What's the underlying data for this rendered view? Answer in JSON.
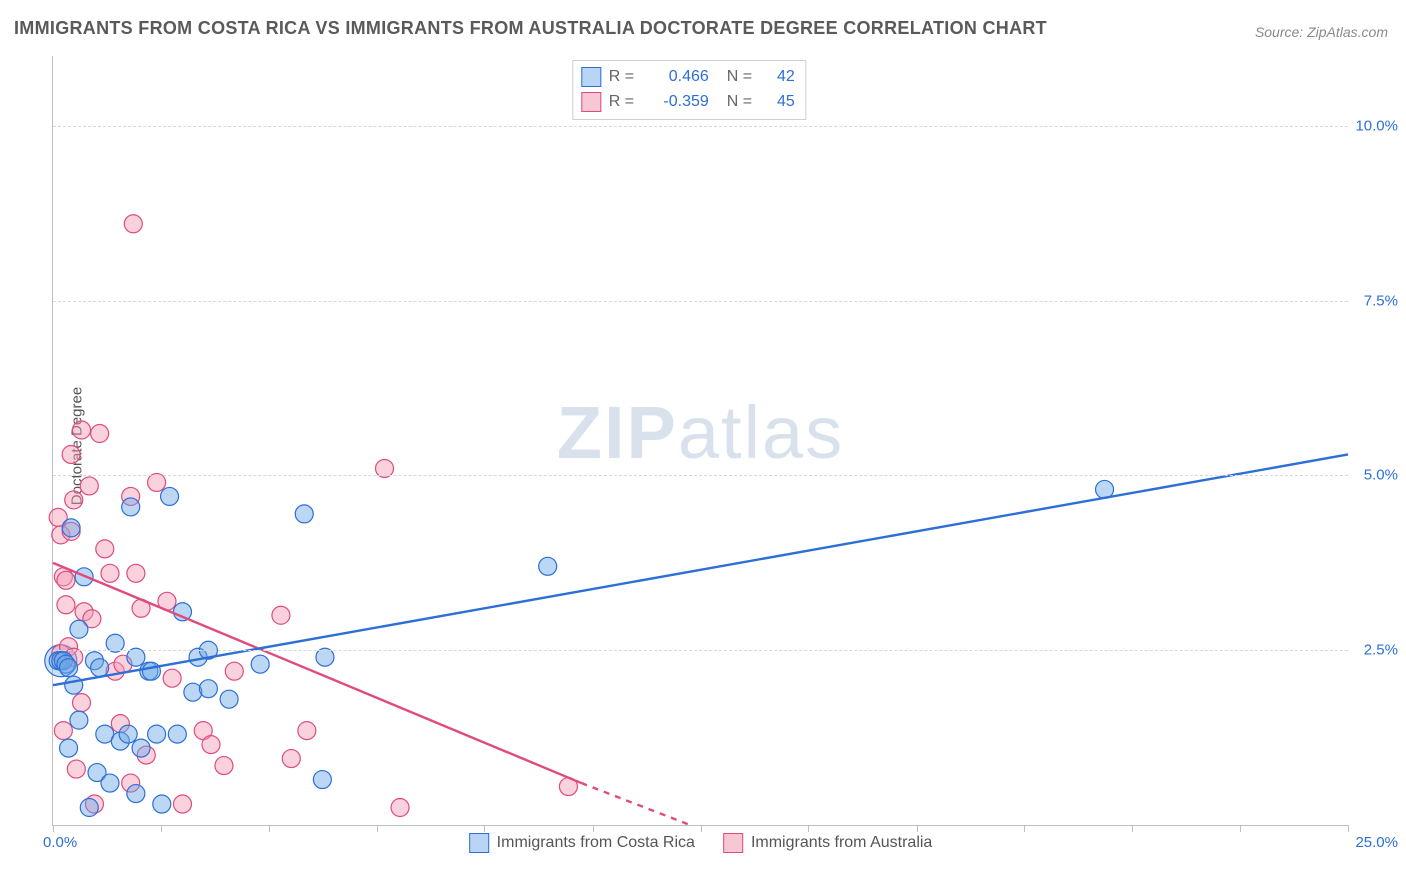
{
  "title": "IMMIGRANTS FROM COSTA RICA VS IMMIGRANTS FROM AUSTRALIA DOCTORATE DEGREE CORRELATION CHART",
  "source_label": "Source: ZipAtlas.com",
  "watermark": {
    "bold": "ZIP",
    "light": "atlas"
  },
  "y_axis_title": "Doctorate Degree",
  "chart": {
    "type": "scatter",
    "xlim": [
      0,
      25
    ],
    "ylim": [
      0,
      11
    ],
    "x_tick_positions": [
      0,
      2.08,
      4.17,
      6.25,
      8.33,
      10.42,
      12.5,
      14.58,
      16.67,
      18.75,
      20.83,
      22.92,
      25
    ],
    "x_tick_labels": {
      "start": "0.0%",
      "end": "25.0%"
    },
    "y_gridlines": [
      2.5,
      5.0,
      7.5,
      10.0
    ],
    "y_tick_labels": [
      "2.5%",
      "5.0%",
      "7.5%",
      "10.0%"
    ],
    "background_color": "#ffffff",
    "grid_color": "#d8d8d8",
    "axis_color": "#bfbfbf",
    "marker_radius": 9,
    "marker_opacity": 0.45,
    "marker_stroke_width": 1.2,
    "line_width": 2.4,
    "series": {
      "blue": {
        "label": "Immigrants from Costa Rica",
        "fill": "#6aa6e6",
        "stroke": "#2d6fd6",
        "R": "0.466",
        "N": "42",
        "regression": {
          "x1": 0,
          "y1": 2.0,
          "x2": 25,
          "y2": 5.3,
          "dash": "none"
        },
        "points": [
          [
            0.1,
            2.35
          ],
          [
            0.15,
            2.35
          ],
          [
            0.2,
            2.35
          ],
          [
            0.25,
            2.3
          ],
          [
            0.3,
            2.25
          ],
          [
            0.3,
            1.1
          ],
          [
            0.35,
            4.25
          ],
          [
            0.4,
            2.0
          ],
          [
            0.5,
            1.5
          ],
          [
            0.5,
            2.8
          ],
          [
            0.6,
            3.55
          ],
          [
            0.7,
            0.25
          ],
          [
            0.8,
            2.35
          ],
          [
            0.85,
            0.75
          ],
          [
            0.9,
            2.25
          ],
          [
            1.0,
            1.3
          ],
          [
            1.1,
            0.6
          ],
          [
            1.2,
            2.6
          ],
          [
            1.3,
            1.2
          ],
          [
            1.45,
            1.3
          ],
          [
            1.5,
            4.55
          ],
          [
            1.6,
            0.45
          ],
          [
            1.6,
            2.4
          ],
          [
            1.7,
            1.1
          ],
          [
            1.85,
            2.2
          ],
          [
            1.9,
            2.2
          ],
          [
            2.0,
            1.3
          ],
          [
            2.1,
            0.3
          ],
          [
            2.25,
            4.7
          ],
          [
            2.4,
            1.3
          ],
          [
            2.5,
            3.05
          ],
          [
            2.7,
            1.9
          ],
          [
            2.8,
            2.4
          ],
          [
            3.0,
            1.95
          ],
          [
            3.0,
            2.5
          ],
          [
            3.4,
            1.8
          ],
          [
            4.0,
            2.3
          ],
          [
            4.85,
            4.45
          ],
          [
            5.2,
            0.65
          ],
          [
            5.25,
            2.4
          ],
          [
            9.55,
            3.7
          ],
          [
            20.3,
            4.8
          ]
        ]
      },
      "pink": {
        "label": "Immigrants from Australia",
        "fill": "#f29bb5",
        "stroke": "#e04b7e",
        "R": "-0.359",
        "N": "45",
        "regression_solid": {
          "x1": 0,
          "y1": 3.75,
          "x2": 10.2,
          "y2": 0.6
        },
        "regression_dash": {
          "x1": 10.2,
          "y1": 0.6,
          "x2": 12.3,
          "y2": 0.0
        },
        "points": [
          [
            0.1,
            4.4
          ],
          [
            0.15,
            4.15
          ],
          [
            0.15,
            2.45
          ],
          [
            0.2,
            1.35
          ],
          [
            0.2,
            3.55
          ],
          [
            0.25,
            3.15
          ],
          [
            0.25,
            3.5
          ],
          [
            0.3,
            2.55
          ],
          [
            0.35,
            4.2
          ],
          [
            0.35,
            5.3
          ],
          [
            0.4,
            2.4
          ],
          [
            0.4,
            4.65
          ],
          [
            0.45,
            0.8
          ],
          [
            0.55,
            5.65
          ],
          [
            0.55,
            1.75
          ],
          [
            0.6,
            3.05
          ],
          [
            0.7,
            4.85
          ],
          [
            0.75,
            2.95
          ],
          [
            0.8,
            0.3
          ],
          [
            0.9,
            5.6
          ],
          [
            1.0,
            3.95
          ],
          [
            1.1,
            3.6
          ],
          [
            1.2,
            2.2
          ],
          [
            1.3,
            1.45
          ],
          [
            1.35,
            2.3
          ],
          [
            1.5,
            4.7
          ],
          [
            1.5,
            0.6
          ],
          [
            1.55,
            8.6
          ],
          [
            1.6,
            3.6
          ],
          [
            1.7,
            3.1
          ],
          [
            1.8,
            1.0
          ],
          [
            2.2,
            3.2
          ],
          [
            2.3,
            2.1
          ],
          [
            2.5,
            0.3
          ],
          [
            2.9,
            1.35
          ],
          [
            3.05,
            1.15
          ],
          [
            3.3,
            0.85
          ],
          [
            3.5,
            2.2
          ],
          [
            4.4,
            3.0
          ],
          [
            4.6,
            0.95
          ],
          [
            4.9,
            1.35
          ],
          [
            6.4,
            5.1
          ],
          [
            6.7,
            0.25
          ],
          [
            9.95,
            0.55
          ],
          [
            2.0,
            4.9
          ]
        ]
      }
    }
  }
}
